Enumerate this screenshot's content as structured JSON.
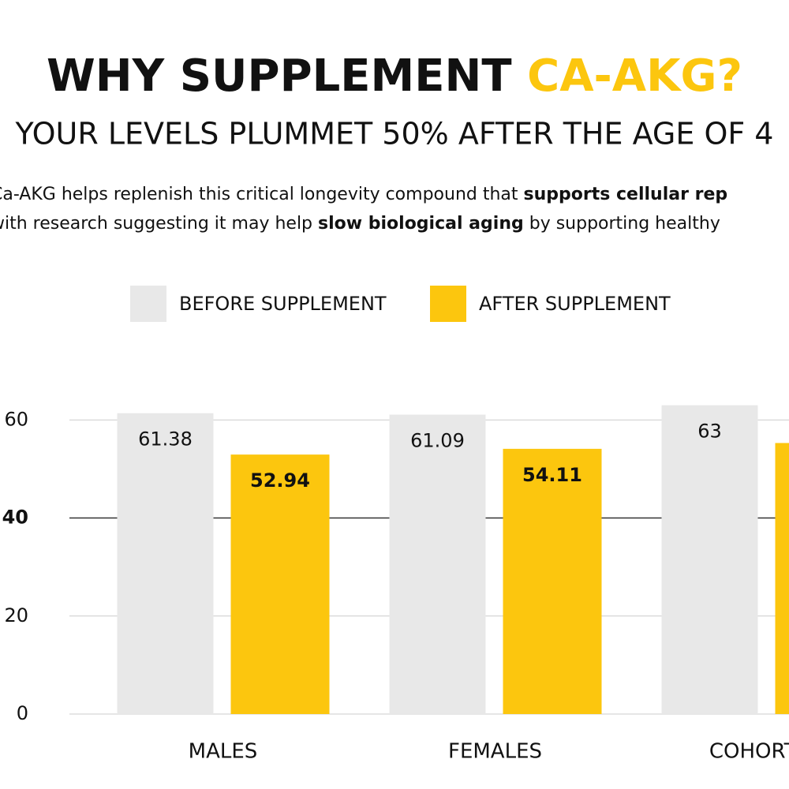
{
  "chart_data": {
    "type": "bar",
    "title": [
      "WHY SUPPLEMENT ",
      "CA-AKG?"
    ],
    "subtitle": "YOUR LEVELS PLUMMET 50% AFTER THE AGE OF 4",
    "description": [
      [
        {
          "text": "Ca-AKG helps replenish this critical longevity compound that ",
          "bold": false
        },
        {
          "text": "supports cellular rep",
          "bold": true
        }
      ],
      [
        {
          "text": "with research suggesting it may help ",
          "bold": false
        },
        {
          "text": "slow biological aging",
          "bold": true
        },
        {
          "text": " by supporting healthy",
          "bold": false
        }
      ]
    ],
    "categories": [
      "MALES",
      "FEMALES",
      "COHORT (C"
    ],
    "series": [
      {
        "name": "BEFORE SUPPLEMENT",
        "color": "#e8e8e8",
        "values": [
          61.38,
          61.09,
          63
        ]
      },
      {
        "name": "AFTER SUPPLEMENT",
        "color": "#fcc60e",
        "values": [
          52.94,
          54.11,
          55.3
        ]
      }
    ],
    "ylim": [
      0,
      66
    ],
    "yticks": [
      0,
      20,
      40,
      60
    ],
    "grid": true
  }
}
